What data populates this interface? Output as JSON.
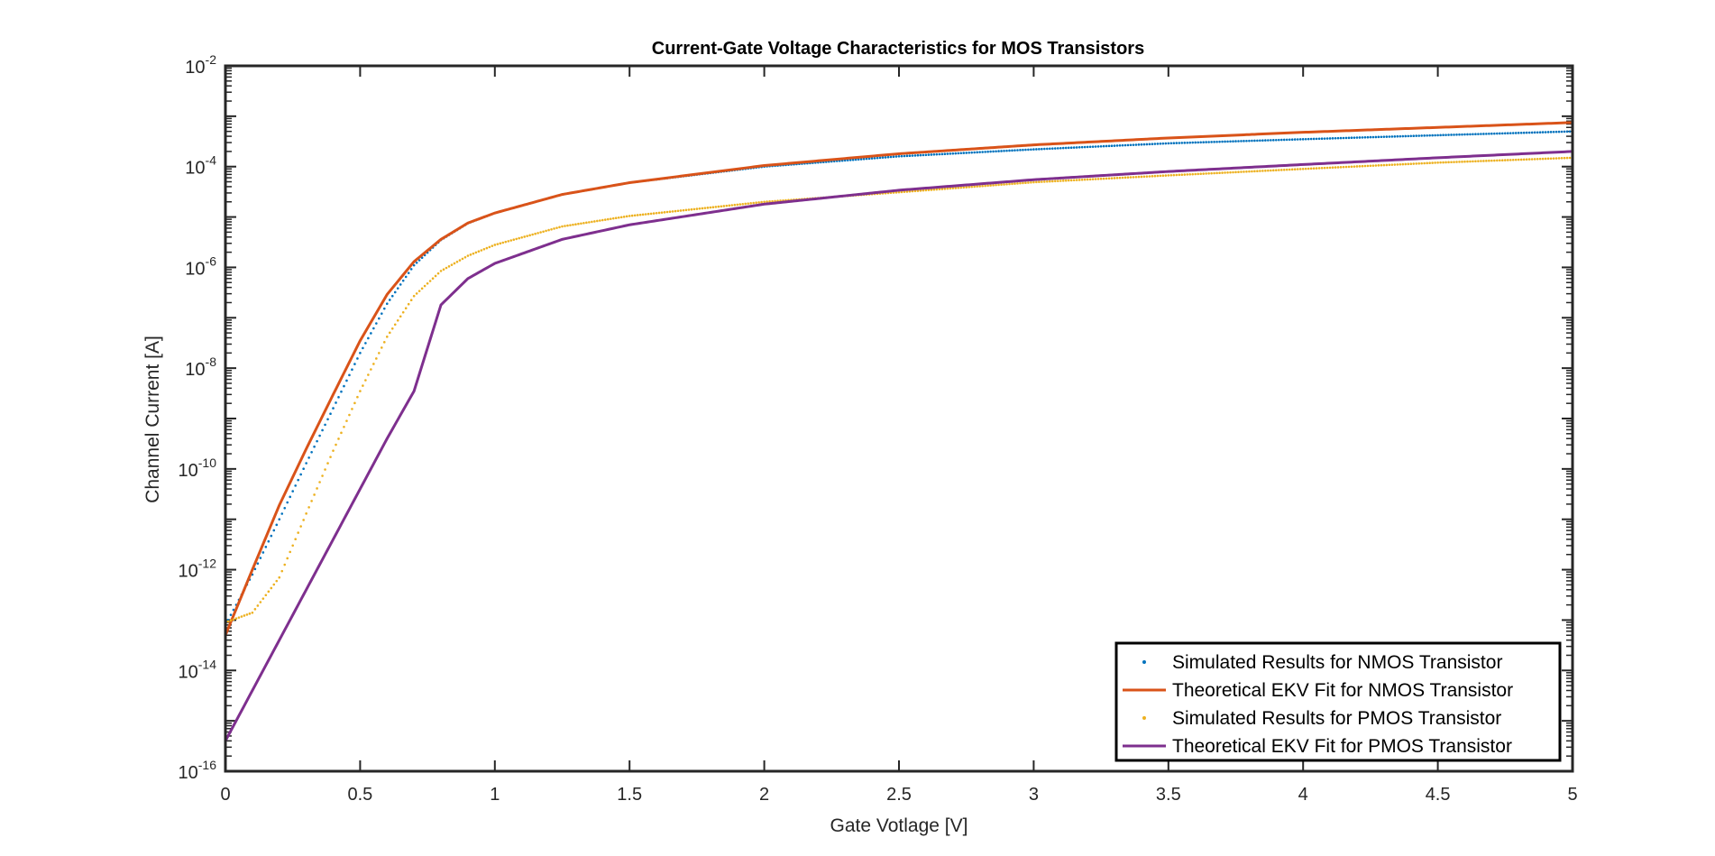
{
  "chart_data": {
    "type": "line",
    "title": "Current-Gate Voltage Characteristics for MOS Transistors",
    "xlabel": "Gate Votlage [V]",
    "ylabel": "Channel Current [A]",
    "xlim": [
      0,
      5
    ],
    "ylim": [
      1e-16,
      0.01
    ],
    "yscale": "log",
    "grid": false,
    "legend_position": "bottom-right",
    "x_ticks": [
      "0",
      "0.5",
      "1",
      "1.5",
      "2",
      "2.5",
      "3",
      "3.5",
      "4",
      "4.5",
      "5"
    ],
    "y_ticks": [
      {
        "base": "10",
        "exp": "-16"
      },
      {
        "base": "10",
        "exp": "-14"
      },
      {
        "base": "10",
        "exp": "-12"
      },
      {
        "base": "10",
        "exp": "-10"
      },
      {
        "base": "10",
        "exp": "-8"
      },
      {
        "base": "10",
        "exp": "-6"
      },
      {
        "base": "10",
        "exp": "-4"
      },
      {
        "base": "10",
        "exp": "-2"
      }
    ],
    "x": [
      0,
      0.1,
      0.2,
      0.3,
      0.4,
      0.5,
      0.6,
      0.7,
      0.8,
      0.9,
      1.0,
      1.25,
      1.5,
      2.0,
      2.5,
      3.0,
      3.5,
      4.0,
      4.5,
      5.0
    ],
    "series": [
      {
        "name": "Simulated Results for NMOS Transistor",
        "style": "dotted",
        "color": "#0072BD",
        "values": [
          8e-14,
          8e-13,
          1e-11,
          1.3e-10,
          1.6e-09,
          2e-08,
          1.9e-07,
          1.1e-06,
          3.5e-06,
          7.5e-06,
          1.2e-05,
          2.8e-05,
          4.8e-05,
          0.0001,
          0.00016,
          0.00022,
          0.00029,
          0.00035,
          0.00042,
          0.0005
        ]
      },
      {
        "name": "Theoretical EKV Fit for NMOS Transistor",
        "style": "solid",
        "color": "#D95319",
        "values": [
          5e-14,
          1e-12,
          1.9e-11,
          2.5e-10,
          3e-09,
          3.5e-08,
          2.9e-07,
          1.3e-06,
          3.6e-06,
          7.6e-06,
          1.2e-05,
          2.8e-05,
          4.8e-05,
          0.000105,
          0.00018,
          0.00027,
          0.00037,
          0.00048,
          0.0006,
          0.00075
        ]
      },
      {
        "name": "Simulated Results for PMOS Transistor",
        "style": "dotted",
        "color": "#EDB120",
        "values": [
          9e-14,
          1.4e-13,
          7e-13,
          1.3e-11,
          2.3e-10,
          3.5e-09,
          4.2e-08,
          2.7e-07,
          8.5e-07,
          1.7e-06,
          2.8e-06,
          6.5e-06,
          1.05e-05,
          2e-05,
          3.1e-05,
          4.9e-05,
          6.7e-05,
          9e-05,
          0.00012,
          0.00015
        ]
      },
      {
        "name": "Theoretical EKV Fit for PMOS Transistor",
        "style": "solid",
        "color": "#7E2F8E",
        "values": [
          4e-16,
          4e-15,
          4e-14,
          4e-13,
          4e-12,
          4e-11,
          4e-10,
          3.5e-09,
          1.8e-07,
          6e-07,
          1.2e-06,
          3.6e-06,
          7e-06,
          1.8e-05,
          3.4e-05,
          5.5e-05,
          8e-05,
          0.00011,
          0.00015,
          0.0002
        ]
      }
    ]
  }
}
